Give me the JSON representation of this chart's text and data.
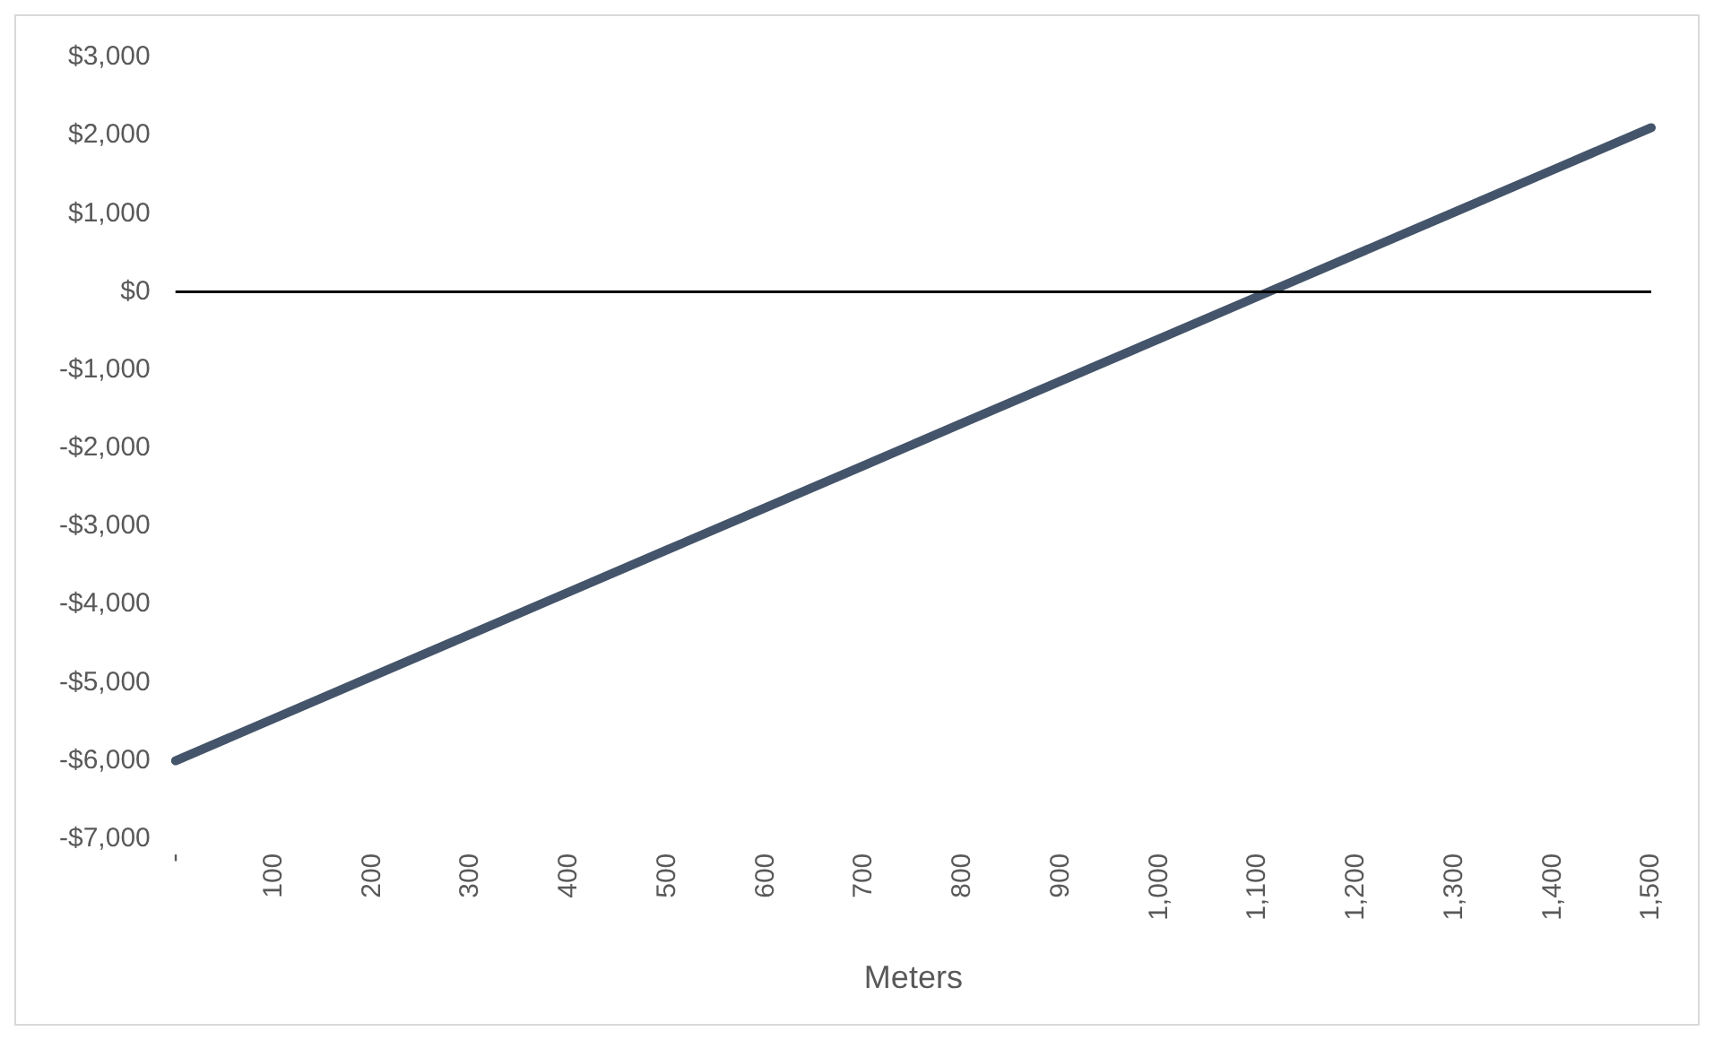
{
  "chart_data": {
    "type": "line",
    "xlabel": "Meters",
    "categories": [
      "-",
      "100",
      "200",
      "300",
      "400",
      "500",
      "600",
      "700",
      "800",
      "900",
      "1,000",
      "1,100",
      "1,200",
      "1,300",
      "1,400",
      "1,500"
    ],
    "series": [
      {
        "color": "#44546a",
        "values": [
          -6000,
          -5460,
          -4920,
          -4380,
          -3840,
          -3300,
          -2760,
          -2220,
          -1680,
          -1140,
          -600,
          -60,
          480,
          1020,
          1560,
          2100
        ]
      }
    ],
    "ylim": [
      -7000,
      3000
    ],
    "yticks": [
      {
        "value": -7000,
        "label": "-$7,000"
      },
      {
        "value": -6000,
        "label": "-$6,000"
      },
      {
        "value": -5000,
        "label": "-$5,000"
      },
      {
        "value": -4000,
        "label": "-$4,000"
      },
      {
        "value": -3000,
        "label": "-$3,000"
      },
      {
        "value": -2000,
        "label": "-$2,000"
      },
      {
        "value": -1000,
        "label": "-$1,000"
      },
      {
        "value": 0,
        "label": "$0"
      },
      {
        "value": 1000,
        "label": "$1,000"
      },
      {
        "value": 2000,
        "label": "$2,000"
      },
      {
        "value": 3000,
        "label": "$3,000"
      }
    ],
    "ref_lines": [
      {
        "axis": "y",
        "value": 0,
        "color": "#000000"
      }
    ],
    "grid": false,
    "legend": false,
    "marker": "none",
    "line_style": "solid"
  }
}
